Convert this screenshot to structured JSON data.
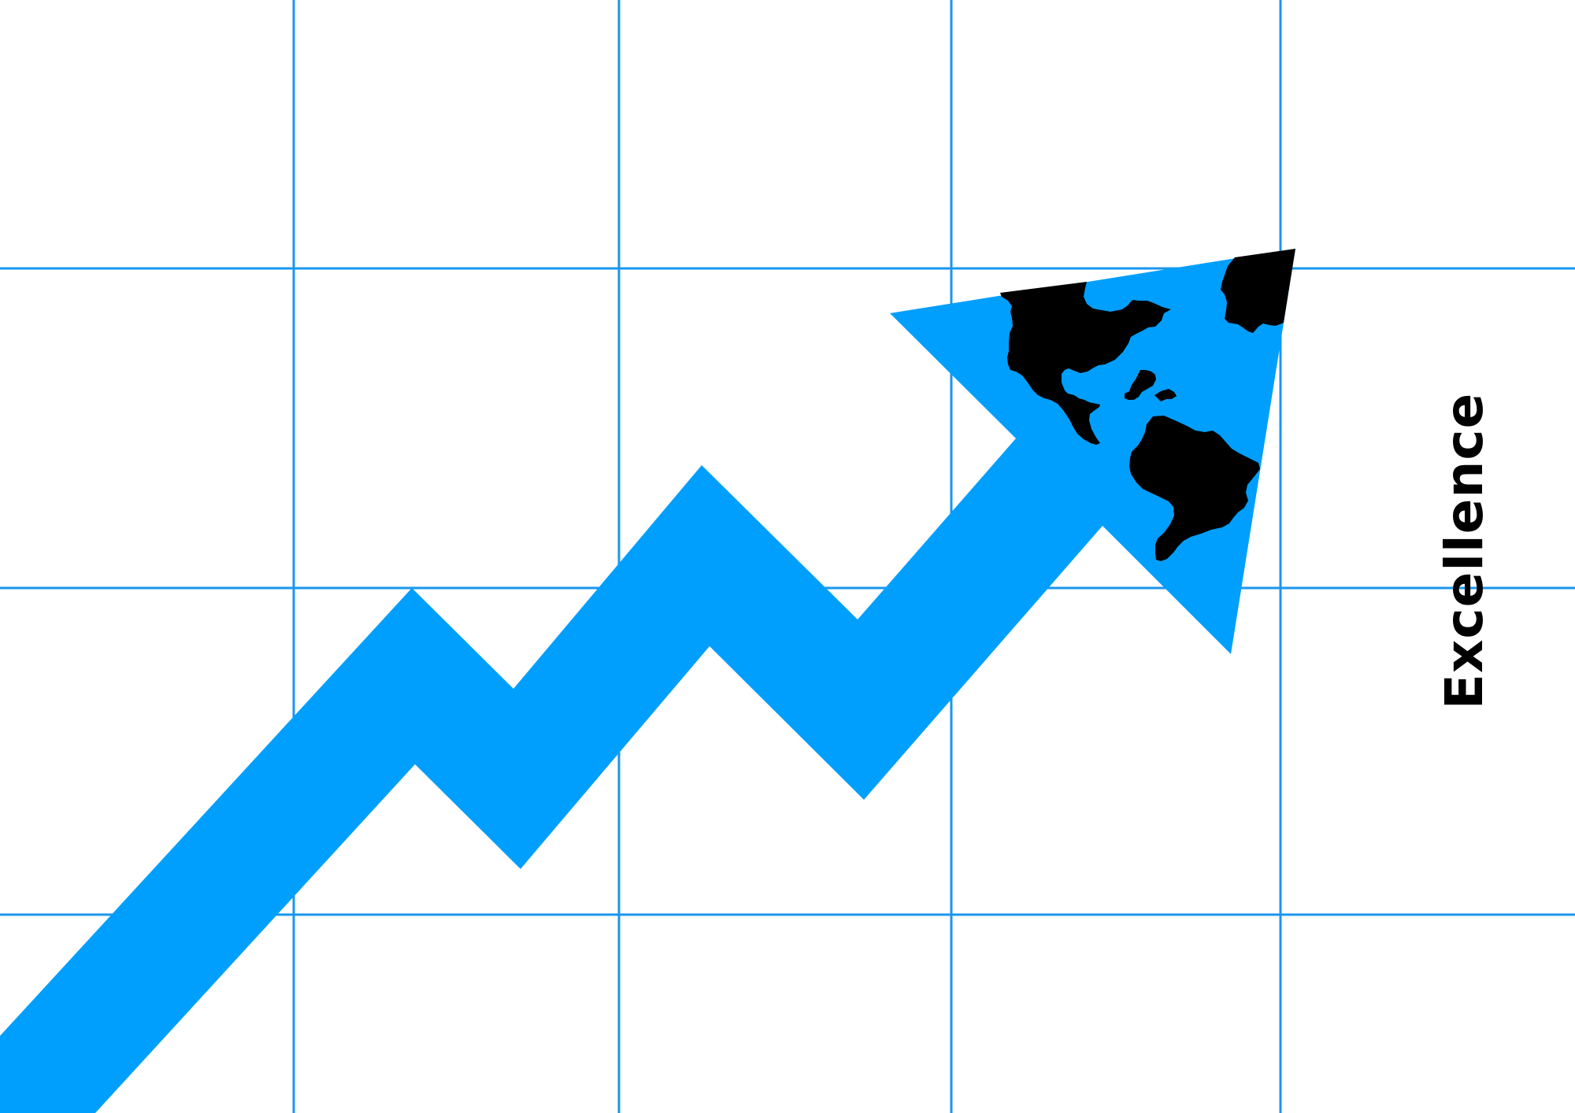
{
  "caption": {
    "text": "Excellence"
  },
  "colors": {
    "background": "#ffffff",
    "grid": "#1a96ef",
    "trend": "#009ffd",
    "continents": "#000000",
    "text": "#000000"
  },
  "icons": {
    "arrow": "trend-up-arrow",
    "globe": "world-map-continents"
  }
}
